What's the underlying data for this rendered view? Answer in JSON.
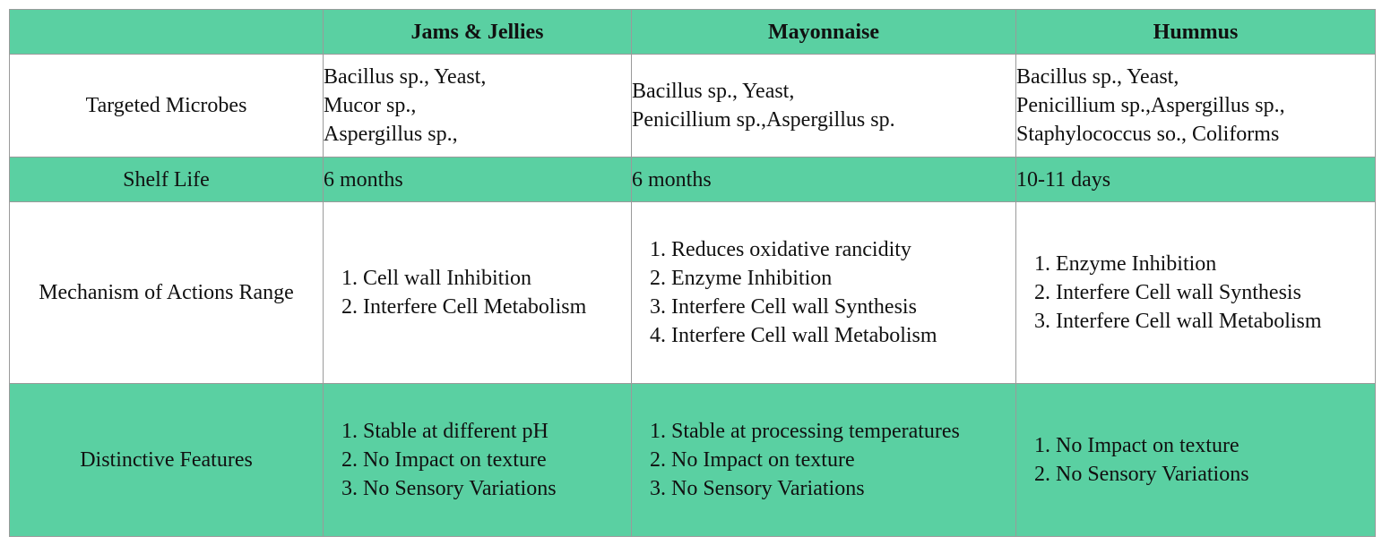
{
  "table": {
    "columns": [
      "",
      "Jams & Jellies",
      "Mayonnaise",
      "Hummus"
    ],
    "rows": [
      {
        "label": "Targeted Microbes",
        "cells": [
          {
            "lines": [
              "Bacillus sp., Yeast,",
              "Mucor sp.,",
              "Aspergillus sp.,"
            ]
          },
          {
            "lines": [
              "Bacillus sp., Yeast,",
              "Penicillium sp.,Aspergillus sp."
            ]
          },
          {
            "lines": [
              "Bacillus sp., Yeast,",
              "Penicillium sp.,Aspergillus sp.,",
              "Staphylococcus so., Coliforms"
            ]
          }
        ]
      },
      {
        "label": "Shelf Life",
        "cells": [
          {
            "lines": [
              "6 months"
            ]
          },
          {
            "lines": [
              "6 months"
            ]
          },
          {
            "lines": [
              "10-11 days"
            ]
          }
        ]
      },
      {
        "label": "Mechanism of Actions Range",
        "cells": [
          {
            "items": [
              "Cell wall Inhibition",
              "Interfere Cell Metabolism"
            ]
          },
          {
            "items": [
              "Reduces oxidative rancidity",
              "Enzyme Inhibition",
              "Interfere Cell wall Synthesis",
              "Interfere Cell wall Metabolism"
            ]
          },
          {
            "items": [
              "Enzyme Inhibition",
              "Interfere Cell wall Synthesis",
              "Interfere Cell wall Metabolism"
            ]
          }
        ]
      },
      {
        "label": "Distinctive Features",
        "cells": [
          {
            "items": [
              "Stable at different pH",
              "No Impact on texture",
              "No Sensory Variations"
            ]
          },
          {
            "items": [
              "Stable at processing temperatures",
              "No Impact on texture",
              "No Sensory Variations"
            ]
          },
          {
            "items": [
              "No Impact on texture",
              "No Sensory Variations"
            ]
          }
        ]
      }
    ]
  }
}
